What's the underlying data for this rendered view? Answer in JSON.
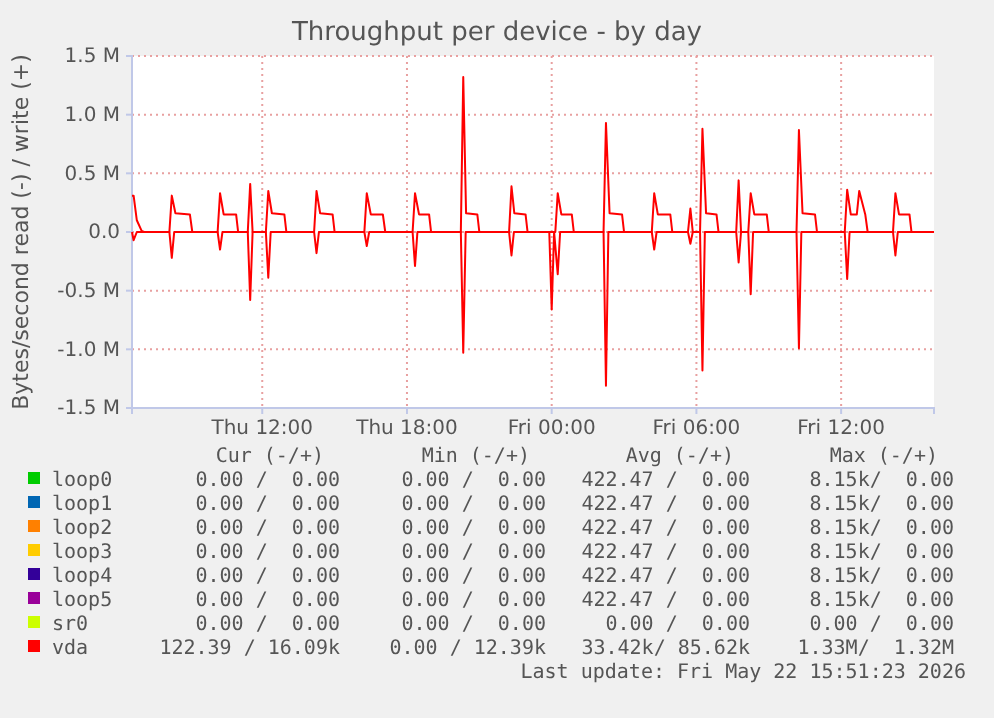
{
  "chart_data": {
    "type": "line",
    "title": "Throughput per device - by day",
    "ylabel": "Bytes/second read (-) / write (+)",
    "xlim": [
      "2026-05-21T06:36",
      "2026-05-22T15:51"
    ],
    "xticks": [
      {
        "value": "2026-05-21T12:00",
        "label": "Thu 12:00"
      },
      {
        "value": "2026-05-21T18:00",
        "label": "Thu 18:00"
      },
      {
        "value": "2026-05-22T00:00",
        "label": "Fri 00:00"
      },
      {
        "value": "2026-05-22T06:00",
        "label": "Fri 06:00"
      },
      {
        "value": "2026-05-22T12:00",
        "label": "Fri 12:00"
      }
    ],
    "ylim": [
      -1500000,
      1500000
    ],
    "yticks": [
      {
        "value": -1500000,
        "label": "-1.5 M"
      },
      {
        "value": -1000000,
        "label": "-1.0 M"
      },
      {
        "value": -500000,
        "label": "-0.5 M"
      },
      {
        "value": 0,
        "label": "0.0"
      },
      {
        "value": 500000,
        "label": "0.5 M"
      },
      {
        "value": 1000000,
        "label": "1.0 M"
      },
      {
        "value": 1500000,
        "label": "1.5 M"
      }
    ],
    "grid": true,
    "legend": "bottom",
    "marker": "none",
    "line_style": "solid",
    "series": [
      {
        "name": "loop0",
        "color": "#00cc00"
      },
      {
        "name": "loop1",
        "color": "#0066b3"
      },
      {
        "name": "loop2",
        "color": "#ff8000"
      },
      {
        "name": "loop3",
        "color": "#ffcc00"
      },
      {
        "name": "loop4",
        "color": "#330099"
      },
      {
        "name": "loop5",
        "color": "#990099"
      },
      {
        "name": "sr0",
        "color": "#ccff00"
      },
      {
        "name": "vda",
        "color": "#ff0000",
        "x": [
          "2026-05-21T06:36",
          "2026-05-21T06:40",
          "2026-05-21T06:48",
          "2026-05-21T07:00",
          "2026-05-21T07:06",
          "2026-05-21T08:09",
          "2026-05-21T08:15",
          "2026-05-21T08:24",
          "2026-05-21T09:00",
          "2026-05-21T09:06",
          "2026-05-21T10:09",
          "2026-05-21T10:15",
          "2026-05-21T10:24",
          "2026-05-21T10:55",
          "2026-05-21T11:00",
          "2026-05-21T11:24",
          "2026-05-21T11:30",
          "2026-05-21T11:36",
          "2026-05-21T12:09",
          "2026-05-21T12:15",
          "2026-05-21T12:24",
          "2026-05-21T12:55",
          "2026-05-21T13:00",
          "2026-05-21T14:09",
          "2026-05-21T14:15",
          "2026-05-21T14:24",
          "2026-05-21T14:55",
          "2026-05-21T15:00",
          "2026-05-21T16:14",
          "2026-05-21T16:20",
          "2026-05-21T16:30",
          "2026-05-21T17:00",
          "2026-05-21T17:06",
          "2026-05-21T18:14",
          "2026-05-21T18:20",
          "2026-05-21T18:30",
          "2026-05-21T18:55",
          "2026-05-21T19:00",
          "2026-05-21T20:14",
          "2026-05-21T20:20",
          "2026-05-21T20:27",
          "2026-05-21T20:55",
          "2026-05-21T21:00",
          "2026-05-21T22:14",
          "2026-05-21T22:20",
          "2026-05-21T22:27",
          "2026-05-21T22:55",
          "2026-05-21T23:00",
          "2026-05-22T00:09",
          "2026-05-22T00:15",
          "2026-05-22T00:24",
          "2026-05-22T00:50",
          "2026-05-22T00:55",
          "2026-05-22T02:09",
          "2026-05-22T02:15",
          "2026-05-22T02:24",
          "2026-05-22T02:55",
          "2026-05-22T03:00",
          "2026-05-22T04:09",
          "2026-05-22T04:15",
          "2026-05-22T04:24",
          "2026-05-22T04:55",
          "2026-05-22T05:00",
          "2026-05-22T05:39",
          "2026-05-22T05:45",
          "2026-05-22T05:51",
          "2026-05-22T06:09",
          "2026-05-22T06:15",
          "2026-05-22T06:24",
          "2026-05-22T06:50",
          "2026-05-22T06:55",
          "2026-05-22T07:39",
          "2026-05-22T07:45",
          "2026-05-22T07:51",
          "2026-05-22T08:09",
          "2026-05-22T08:15",
          "2026-05-22T08:24",
          "2026-05-22T08:55",
          "2026-05-22T09:00",
          "2026-05-22T10:09",
          "2026-05-22T10:15",
          "2026-05-22T10:24",
          "2026-05-22T10:55",
          "2026-05-22T11:00",
          "2026-05-22T12:09",
          "2026-05-22T12:15",
          "2026-05-22T12:24",
          "2026-05-22T12:39",
          "2026-05-22T12:45",
          "2026-05-22T13:00",
          "2026-05-22T13:06",
          "2026-05-22T14:09",
          "2026-05-22T14:15",
          "2026-05-22T14:24",
          "2026-05-22T14:50",
          "2026-05-22T14:55",
          "2026-05-22T15:51"
        ],
        "values": [
          310000,
          310000,
          100000,
          10000,
          0,
          0,
          310000,
          160000,
          150000,
          0,
          0,
          330000,
          150000,
          150000,
          0,
          0,
          410000,
          0,
          0,
          350000,
          160000,
          150000,
          0,
          0,
          350000,
          160000,
          150000,
          0,
          0,
          330000,
          150000,
          150000,
          0,
          0,
          330000,
          150000,
          150000,
          0,
          0,
          1320000,
          160000,
          150000,
          0,
          0,
          390000,
          160000,
          150000,
          0,
          0,
          330000,
          150000,
          150000,
          0,
          0,
          930000,
          160000,
          150000,
          0,
          0,
          330000,
          150000,
          150000,
          0,
          0,
          200000,
          0,
          0,
          880000,
          160000,
          150000,
          0,
          0,
          440000,
          0,
          0,
          330000,
          150000,
          150000,
          0,
          0,
          870000,
          160000,
          150000,
          0,
          0,
          360000,
          150000,
          150000,
          350000,
          150000,
          0,
          0,
          330000,
          150000,
          150000,
          0,
          0
        ]
      },
      {
        "color": "#ff0000",
        "x": [
          "2026-05-21T06:36",
          "2026-05-21T06:40",
          "2026-05-21T06:48",
          "2026-05-21T08:09",
          "2026-05-21T08:15",
          "2026-05-21T08:21",
          "2026-05-21T10:09",
          "2026-05-21T10:15",
          "2026-05-21T10:21",
          "2026-05-21T11:24",
          "2026-05-21T11:30",
          "2026-05-21T11:36",
          "2026-05-21T12:09",
          "2026-05-21T12:15",
          "2026-05-21T12:21",
          "2026-05-21T14:09",
          "2026-05-21T14:15",
          "2026-05-21T14:21",
          "2026-05-21T16:14",
          "2026-05-21T16:20",
          "2026-05-21T16:26",
          "2026-05-21T18:14",
          "2026-05-21T18:20",
          "2026-05-21T18:26",
          "2026-05-21T20:14",
          "2026-05-21T20:20",
          "2026-05-21T20:26",
          "2026-05-21T22:14",
          "2026-05-21T22:20",
          "2026-05-21T22:26",
          "2026-05-21T23:54",
          "2026-05-22T00:00",
          "2026-05-22T00:06",
          "2026-05-22T00:15",
          "2026-05-22T00:21",
          "2026-05-22T02:09",
          "2026-05-22T02:15",
          "2026-05-22T02:21",
          "2026-05-22T04:09",
          "2026-05-22T04:15",
          "2026-05-22T04:21",
          "2026-05-22T05:39",
          "2026-05-22T05:45",
          "2026-05-22T05:51",
          "2026-05-22T06:09",
          "2026-05-22T06:15",
          "2026-05-22T06:21",
          "2026-05-22T07:39",
          "2026-05-22T07:45",
          "2026-05-22T07:51",
          "2026-05-22T08:09",
          "2026-05-22T08:15",
          "2026-05-22T08:21",
          "2026-05-22T10:09",
          "2026-05-22T10:15",
          "2026-05-22T10:21",
          "2026-05-22T12:09",
          "2026-05-22T12:15",
          "2026-05-22T12:21",
          "2026-05-22T14:09",
          "2026-05-22T14:15",
          "2026-05-22T14:21",
          "2026-05-22T15:51"
        ],
        "values": [
          0,
          -70000,
          0,
          0,
          -220000,
          0,
          0,
          -150000,
          0,
          0,
          -580000,
          0,
          0,
          -390000,
          0,
          0,
          -180000,
          0,
          0,
          -120000,
          0,
          0,
          -290000,
          0,
          0,
          -1030000,
          0,
          0,
          -200000,
          0,
          0,
          -660000,
          0,
          -360000,
          0,
          0,
          -1310000,
          0,
          0,
          -150000,
          0,
          0,
          -100000,
          0,
          0,
          -1180000,
          0,
          0,
          -260000,
          0,
          0,
          -530000,
          0,
          0,
          -990000,
          0,
          0,
          -400000,
          0,
          0,
          -200000,
          0,
          0
        ]
      }
    ],
    "annotations": [
      "Cur (-/+)",
      "Min (-/+)",
      "Avg (-/+)",
      "Max (-/+)",
      "0.00 /  0.00",
      "0.00 /  0.00",
      "422.47 /  0.00",
      "8.15k/  0.00",
      "0.00 /  0.00",
      "0.00 /  0.00",
      "422.47 /  0.00",
      "8.15k/  0.00",
      "0.00 /  0.00",
      "0.00 /  0.00",
      "422.47 /  0.00",
      "8.15k/  0.00",
      "0.00 /  0.00",
      "0.00 /  0.00",
      "422.47 /  0.00",
      "8.15k/  0.00",
      "0.00 /  0.00",
      "0.00 /  0.00",
      "422.47 /  0.00",
      "8.15k/  0.00",
      "0.00 /  0.00",
      "0.00 /  0.00",
      "422.47 /  0.00",
      "8.15k/  0.00",
      "0.00 /  0.00",
      "0.00 /  0.00",
      "0.00 /  0.00",
      "0.00 /  0.00",
      "122.39 / 16.09k",
      "0.00 / 12.39k",
      "33.42k/ 85.62k",
      "1.33M/  1.32M",
      "Last update: Fri May 22 15:51:23 2026"
    ]
  }
}
